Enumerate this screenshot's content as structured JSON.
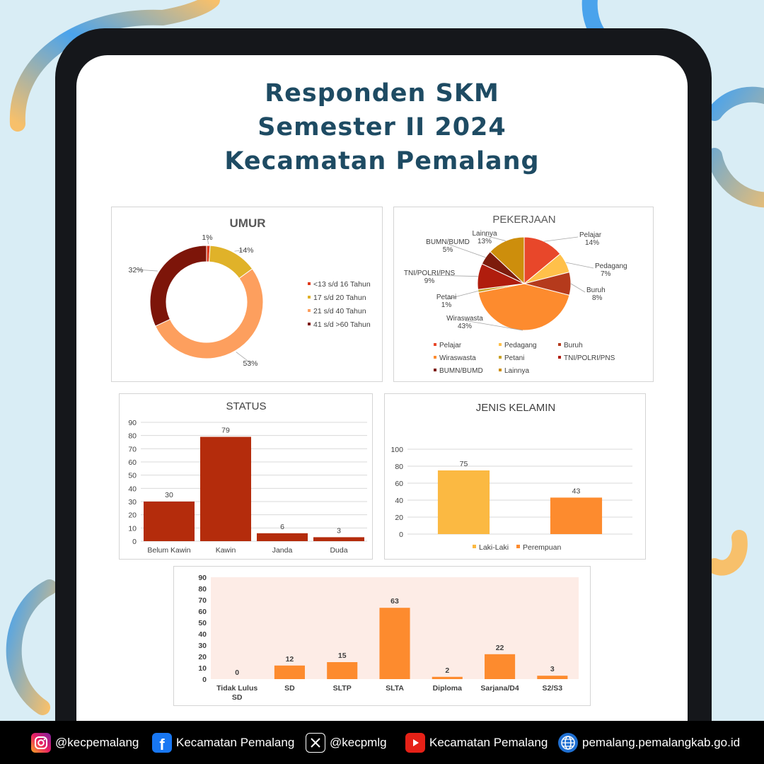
{
  "page": {
    "title_lines": [
      "Responden SKM",
      "Semester II 2024",
      "Kecamatan Pemalang"
    ]
  },
  "colors": {
    "background": "#d9edf5",
    "title": "#1e4b63",
    "deco_blue": "#4aa3ec",
    "deco_orange": "#f7c06b",
    "dark_red": "#b42c0c",
    "orange": "#fd8b2e",
    "yellow": "#fbb942"
  },
  "chart_data": [
    {
      "id": "umur",
      "type": "pie",
      "style": "donut",
      "title": "UMUR",
      "labels": [
        "<13 s/d 16 Tahun",
        "17 s/d 20 Tahun",
        "21 s/d 40 Tahun",
        "41 s/d >60 Tahun"
      ],
      "values": [
        1,
        14,
        53,
        32
      ],
      "value_labels": [
        "1%",
        "14%",
        "53%",
        "32%"
      ],
      "colors": [
        "#e03a1c",
        "#e0b229",
        "#fd9f5e",
        "#7d1509"
      ],
      "legend": "right"
    },
    {
      "id": "pekerjaan",
      "type": "pie",
      "title": "PEKERJAAN",
      "labels": [
        "Pelajar",
        "Pedagang",
        "Buruh",
        "Wiraswasta",
        "Petani",
        "TNI/POLRI/PNS",
        "BUMN/BUMD",
        "Lainnya"
      ],
      "values": [
        14,
        7,
        8,
        43,
        1,
        9,
        5,
        13
      ],
      "value_labels": [
        "14%",
        "7%",
        "8%",
        "43%",
        "1%",
        "9%",
        "5%",
        "13%"
      ],
      "colors": [
        "#e8472a",
        "#ffc04a",
        "#b53a1c",
        "#fd8b2e",
        "#c9a227",
        "#b01d0d",
        "#7d1c0c",
        "#cd8e0c"
      ],
      "legend": "bottom"
    },
    {
      "id": "status",
      "type": "bar",
      "title": "STATUS",
      "categories": [
        "Belum Kawin",
        "Kawin",
        "Janda",
        "Duda"
      ],
      "values": [
        30,
        79,
        6,
        3
      ],
      "ylim": [
        0,
        90
      ],
      "yticks": [
        0,
        10,
        20,
        30,
        40,
        50,
        60,
        70,
        80,
        90
      ],
      "color": "#b42c0c",
      "grid": true
    },
    {
      "id": "jenis_kelamin",
      "type": "bar",
      "title": "JENIS KELAMIN",
      "categories": [
        "Laki-Laki",
        "Perempuan"
      ],
      "values": [
        75,
        43
      ],
      "colors": [
        "#fbb942",
        "#fd8b2e"
      ],
      "ylim": [
        0,
        100
      ],
      "yticks": [
        0,
        20,
        40,
        60,
        80,
        100
      ],
      "legend": "bottom",
      "grid": true
    },
    {
      "id": "pendidikan",
      "type": "bar",
      "title": "",
      "categories": [
        "Tidak Lulus SD",
        "SD",
        "SLTP",
        "SLTA",
        "Diploma",
        "Sarjana/D4",
        "S2/S3"
      ],
      "category_lines": [
        [
          "Tidak Lulus",
          "SD"
        ],
        [
          "SD"
        ],
        [
          "SLTP"
        ],
        [
          "SLTA"
        ],
        [
          "Diploma"
        ],
        [
          "Sarjana/D4"
        ],
        [
          "S2/S3"
        ]
      ],
      "values": [
        0,
        12,
        15,
        63,
        2,
        22,
        3
      ],
      "ylim": [
        0,
        90
      ],
      "yticks": [
        0,
        10,
        20,
        30,
        40,
        50,
        60,
        70,
        80,
        90
      ],
      "color": "#fd8b2e",
      "plot_background": "#fdece6",
      "grid": false
    }
  ],
  "footer": {
    "instagram": {
      "icon": "instagram-icon",
      "label": "@kecpemalang"
    },
    "facebook": {
      "icon": "facebook-icon",
      "label": "Kecamatan Pemalang"
    },
    "x": {
      "icon": "x-icon",
      "label": "@kecpmlg"
    },
    "youtube": {
      "icon": "youtube-icon",
      "label": "Kecamatan Pemalang"
    },
    "website": {
      "icon": "globe-icon",
      "label": "pemalang.pemalangkab.go.id"
    }
  }
}
